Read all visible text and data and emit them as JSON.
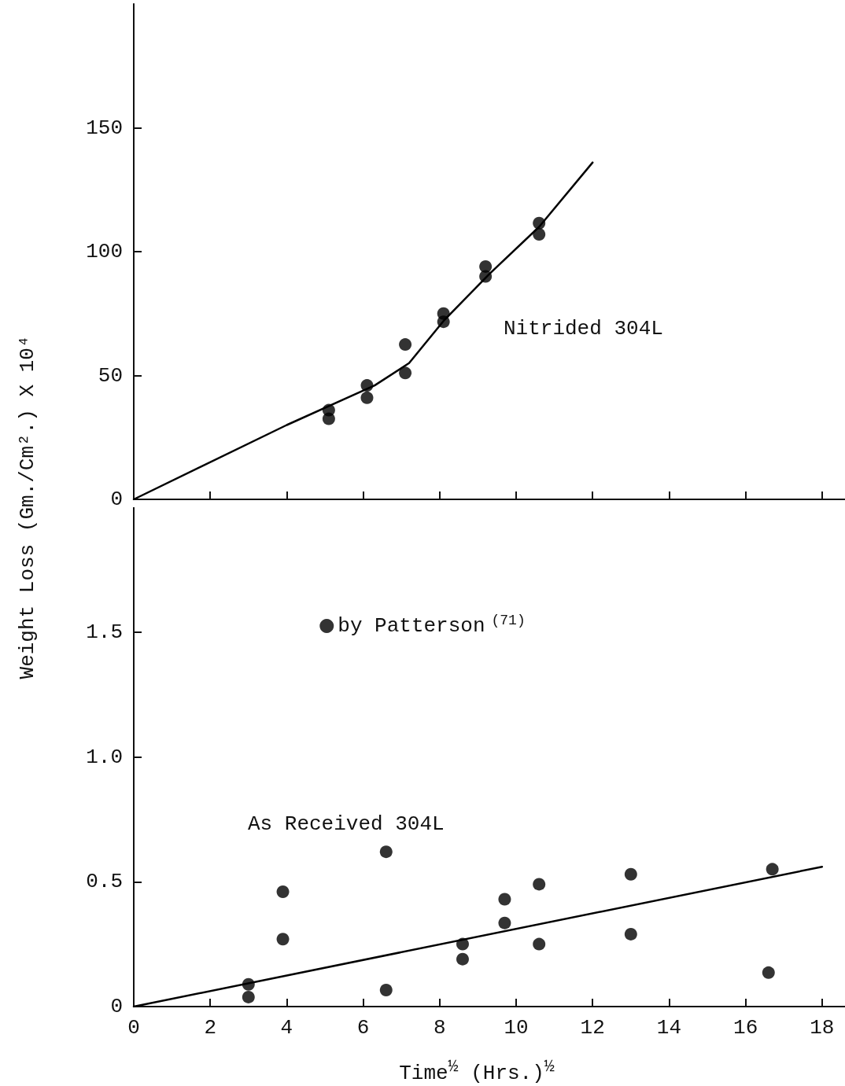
{
  "chart_data": [
    {
      "type": "scatter",
      "ylabel": "Weight Loss (Gm./Cm².) X 10⁴",
      "xlim": [
        0,
        18.6
      ],
      "xticks": [
        0,
        2,
        4,
        6,
        8,
        10,
        12,
        14,
        16,
        18
      ],
      "ylim": [
        0,
        200
      ],
      "yticks": [
        0,
        50,
        100,
        150
      ],
      "tick_labels": "y",
      "grid": false,
      "legend": false,
      "marker": "circle",
      "annotations": [
        "Nitrided 304L"
      ],
      "series": [
        {
          "color": "#000000",
          "x": [
            5.1,
            5.1,
            6.1,
            6.1,
            7.1,
            7.1,
            8.1,
            8.1,
            9.2,
            9.2,
            10.6,
            10.6
          ],
          "values": [
            36,
            32.5,
            46,
            41,
            62.5,
            51,
            75,
            71.7,
            94,
            90,
            111.5,
            107
          ]
        },
        {
          "type": "line",
          "color": "#000000",
          "marker": "none",
          "line_style": "solid",
          "x": [
            0,
            4,
            6.3,
            7.2,
            8.1,
            9.3,
            10.6,
            12
          ],
          "values": [
            0,
            30,
            46,
            55,
            72,
            91,
            110,
            136
          ]
        }
      ]
    },
    {
      "type": "scatter",
      "xlabel": "Time$^{½}$ (Hrs.)$^{½}$",
      "xlim": [
        0,
        18.6
      ],
      "xticks": [
        0,
        2,
        4,
        6,
        8,
        10,
        12,
        14,
        16,
        18
      ],
      "ylim": [
        0,
        2.0
      ],
      "yticks": [
        0,
        0.5,
        {
          "value": 1,
          "label": "1.0"
        },
        1.5
      ],
      "grid": false,
      "legend": "top",
      "marker": "circle",
      "annotations": [
        "As Received 304L"
      ],
      "series": [
        {
          "name": "by Patterson$^{(71)}$",
          "color": "#000000",
          "x": [
            3.0,
            3.0,
            3.9,
            3.9,
            6.6,
            6.6,
            8.6,
            8.6,
            9.7,
            9.7,
            10.6,
            10.6,
            13.0,
            13.0,
            16.7,
            16.6
          ],
          "values": [
            0.089,
            0.038,
            0.46,
            0.27,
            0.62,
            0.066,
            0.25,
            0.19,
            0.43,
            0.335,
            0.49,
            0.25,
            0.53,
            0.29,
            0.55,
            0.136
          ]
        },
        {
          "type": "line",
          "color": "#000000",
          "marker": "none",
          "line_style": "solid",
          "x": [
            0,
            18
          ],
          "values": [
            0,
            0.56
          ]
        }
      ]
    }
  ]
}
